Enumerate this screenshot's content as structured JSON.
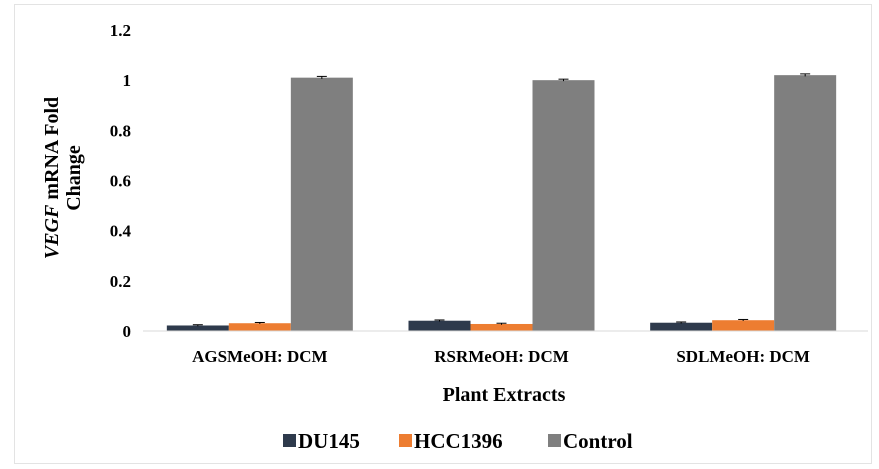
{
  "chart_data": {
    "type": "bar",
    "categories": [
      "AGSMeOH: DCM",
      "RSRMeOH: DCM",
      "SDLMeOH: DCM"
    ],
    "series": [
      {
        "name": "DU145",
        "color": "#2e3a4c",
        "values": [
          0.022,
          0.041,
          0.033
        ],
        "errors": [
          0.003,
          0.003,
          0.003
        ]
      },
      {
        "name": "HCC1396",
        "color": "#ed7d31",
        "values": [
          0.031,
          0.028,
          0.043
        ],
        "errors": [
          0.003,
          0.003,
          0.003
        ]
      },
      {
        "name": "Control",
        "color": "#7f7f7f",
        "values": [
          1.01,
          1.0,
          1.02
        ],
        "errors": [
          0.005,
          0.004,
          0.005
        ]
      }
    ],
    "ylabel_italic": "VEGF",
    "ylabel_line1": " mRNA Fold",
    "ylabel_line2": "Change",
    "xlabel": "Plant Extracts",
    "ylim": [
      0,
      1.2
    ],
    "yticks": [
      "0",
      "0.2",
      "0.4",
      "0.6",
      "0.8",
      "1",
      "1.2"
    ],
    "ytick_values": [
      0,
      0.2,
      0.4,
      0.6,
      0.8,
      1,
      1.2
    ],
    "grid": false,
    "legend_position": "bottom"
  }
}
